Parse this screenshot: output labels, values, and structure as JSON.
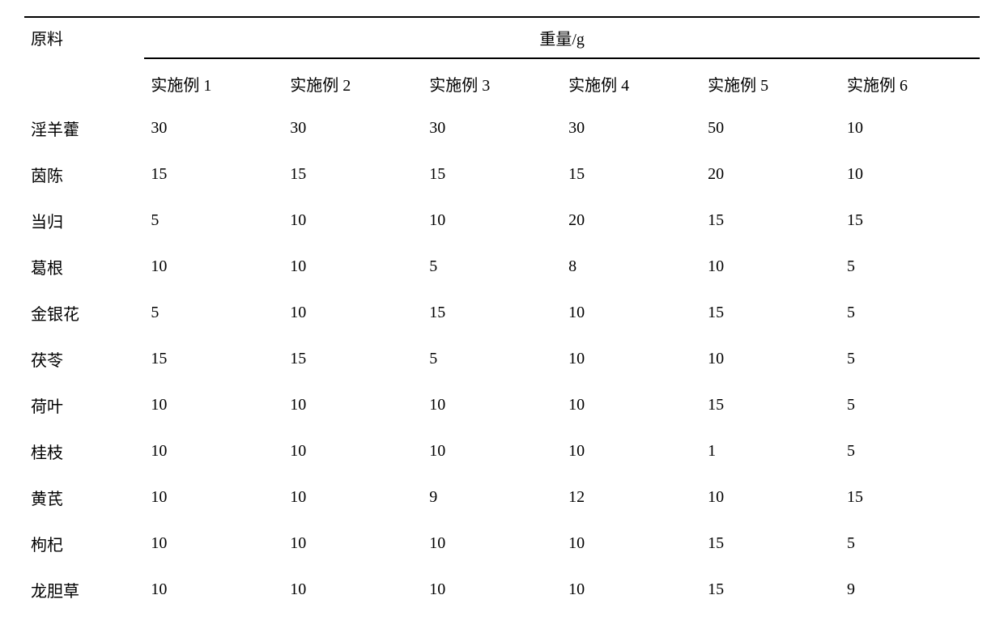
{
  "table": {
    "row_header_label": "原料",
    "group_header": "重量/g",
    "columns": [
      "实施例 1",
      "实施例 2",
      "实施例 3",
      "实施例 4",
      "实施例 5",
      "实施例 6"
    ],
    "rows": [
      {
        "name": "淫羊藿",
        "values": [
          "30",
          "30",
          "30",
          "30",
          "50",
          "10"
        ]
      },
      {
        "name": "茵陈",
        "values": [
          "15",
          "15",
          "15",
          "15",
          "20",
          "10"
        ]
      },
      {
        "name": "当归",
        "values": [
          "5",
          "10",
          "10",
          "20",
          "15",
          "15"
        ]
      },
      {
        "name": "葛根",
        "values": [
          "10",
          "10",
          "5",
          "8",
          "10",
          "5"
        ]
      },
      {
        "name": "金银花",
        "values": [
          "5",
          "10",
          "15",
          "10",
          "15",
          "5"
        ]
      },
      {
        "name": "茯苓",
        "values": [
          "15",
          "15",
          "5",
          "10",
          "10",
          "5"
        ]
      },
      {
        "name": "荷叶",
        "values": [
          "10",
          "10",
          "10",
          "10",
          "15",
          "5"
        ]
      },
      {
        "name": "桂枝",
        "values": [
          "10",
          "10",
          "10",
          "10",
          "1",
          "5"
        ]
      },
      {
        "name": "黄芪",
        "values": [
          "10",
          "10",
          "9",
          "12",
          "10",
          "15"
        ]
      },
      {
        "name": "枸杞",
        "values": [
          "10",
          "10",
          "10",
          "10",
          "15",
          "5"
        ]
      },
      {
        "name": "龙胆草",
        "values": [
          "10",
          "10",
          "10",
          "10",
          "15",
          "9"
        ]
      }
    ],
    "border_color": "#000000",
    "background_color": "#ffffff",
    "text_color": "#000000",
    "font_size": 20
  }
}
